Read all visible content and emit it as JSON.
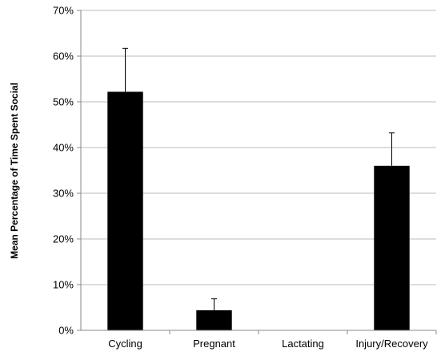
{
  "chart_data": {
    "type": "bar",
    "title": "",
    "xlabel": "",
    "ylabel": "Mean Percentage of Time Spent Social",
    "categories": [
      "Cycling",
      "Pregnant",
      "Lactating",
      "Injury/Recovery"
    ],
    "values": [
      52.2,
      4.4,
      0,
      36.0
    ],
    "error_upper": [
      61.7,
      6.9,
      null,
      43.2
    ],
    "ylim": [
      0,
      70
    ],
    "yticks": [
      0,
      10,
      20,
      30,
      40,
      50,
      60,
      70
    ],
    "ytick_labels": [
      "0%",
      "10%",
      "20%",
      "30%",
      "40%",
      "50%",
      "60%",
      "70%"
    ],
    "grid": true,
    "bar_color": "#000000",
    "grid_color": "#bbbbbb"
  }
}
